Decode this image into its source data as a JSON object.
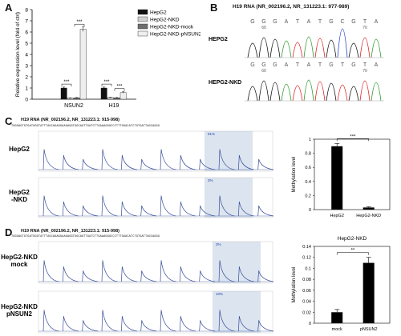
{
  "panels": {
    "A": {
      "letter": "A",
      "chart_data": {
        "type": "bar",
        "ylabel": "Relative expression level (fold of ctrl)",
        "ylim": [
          0,
          8
        ],
        "yticks": [
          "0",
          "1",
          "2",
          "3",
          "4",
          "5",
          "6",
          "7",
          "8"
        ],
        "categories": [
          "NSUN2",
          "H19"
        ],
        "series": [
          {
            "name": "HepG2",
            "values": [
              1.0,
              1.0
            ],
            "errors": [
              0.08,
              0.08
            ],
            "color": "#111111"
          },
          {
            "name": "HepG2-NKD",
            "values": [
              0.1,
              0.15
            ],
            "errors": [
              0.03,
              0.03
            ],
            "color": "#cfcfcf"
          },
          {
            "name": "HepG2-NKD-mock",
            "values": [
              0.12,
              0.12
            ],
            "errors": [
              0.03,
              0.03
            ],
            "color": "#6d6d6d"
          },
          {
            "name": "HepG2-NKD-pNSUN2",
            "values": [
              6.25,
              0.6
            ],
            "errors": [
              0.2,
              0.06
            ],
            "color": "#eeeeee"
          }
        ],
        "annotations": [
          "***",
          "***",
          "***",
          "***"
        ]
      }
    },
    "B": {
      "letter": "B",
      "title": "H19 RNA (NR_002196.2, NR_131223.1: 977-989)",
      "rows": [
        {
          "label": "HEPG2",
          "bases": [
            "G",
            "G",
            "G",
            "A",
            "T",
            "A",
            "T",
            "G",
            "C",
            "G",
            "T",
            "A"
          ],
          "tick_left": "60",
          "tick_right": "70"
        },
        {
          "label": "HEPG2-NKD",
          "bases": [
            "G",
            "G",
            "G",
            "A",
            "T",
            "A",
            "T",
            "G",
            "T",
            "G",
            "T",
            "A"
          ],
          "tick_left": "60",
          "tick_right": "70"
        }
      ]
    },
    "C": {
      "letter": "C",
      "title": "H19 RNA (NR_002196.2, NR_131223.1: 915-998)",
      "sequence": "TGGGAGTGTGATGGGTATTTAGCAGAGGAAGAGGTGGCAGTTGATCTTGAAAGGGCCCTTTGGACATCTGTGATTAGCAGGG",
      "rows": [
        {
          "label": "HepG2",
          "peak_label": "91%"
        },
        {
          "label": "HepG2 -NKD",
          "peak_label": "3%"
        }
      ],
      "chart_data": {
        "type": "bar",
        "ylabel": "Methylation level",
        "ylim": [
          0,
          1
        ],
        "yticks": [
          "0",
          "0.2",
          "0.4",
          "0.6",
          "0.8",
          "1"
        ],
        "categories": [
          "HepG2",
          "HepG2-NKD"
        ],
        "values": [
          0.9,
          0.03
        ],
        "errors": [
          0.04,
          0.01
        ],
        "annotation": "***"
      }
    },
    "D": {
      "letter": "D",
      "title": "H19 RNA (NR_002196.2, NR_131223.1: 915-998)",
      "sequence": "TGGGAGTGTGATGGGTATTTAGCAGAGGAAGAGGTGGCAGTTGATCTTGAAAGGGCCCTTTGGACATCTGTGATTAGCAGGG",
      "rows": [
        {
          "label": "HepG2-NKD mock",
          "peak_label": "3%"
        },
        {
          "label": "HepG2-NKD pNSUN2",
          "peak_label": "10%"
        }
      ],
      "chart_data": {
        "type": "bar",
        "title": "HepG2-NKD",
        "ylabel": "Methylation level",
        "ylim": [
          0,
          0.14
        ],
        "yticks": [
          "0",
          "0.02",
          "0.04",
          "0.06",
          "0.08",
          "0.1",
          "0.12",
          "0.14"
        ],
        "categories": [
          "mock",
          "pNSUN2"
        ],
        "values": [
          0.02,
          0.11
        ],
        "errors": [
          0.005,
          0.01
        ],
        "annotation": "**"
      }
    }
  }
}
